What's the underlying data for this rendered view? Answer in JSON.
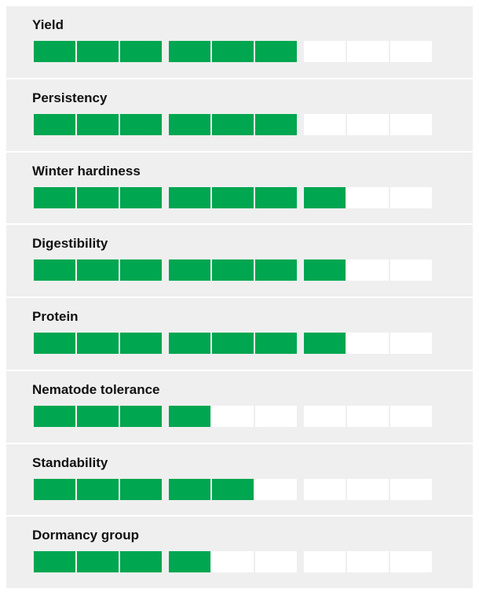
{
  "type": "rating",
  "scale_max": 9,
  "fill_color": "#00a650",
  "empty_color": "#ffffff",
  "items": [
    {
      "label": "Yield",
      "value": 6
    },
    {
      "label": "Persistency",
      "value": 6
    },
    {
      "label": "Winter hardiness",
      "value": 7
    },
    {
      "label": "Digestibility",
      "value": 7
    },
    {
      "label": "Protein",
      "value": 7
    },
    {
      "label": "Nematode tolerance",
      "value": 4
    },
    {
      "label": "Standability",
      "value": 5
    },
    {
      "label": "Dormancy group",
      "value": 4
    }
  ]
}
